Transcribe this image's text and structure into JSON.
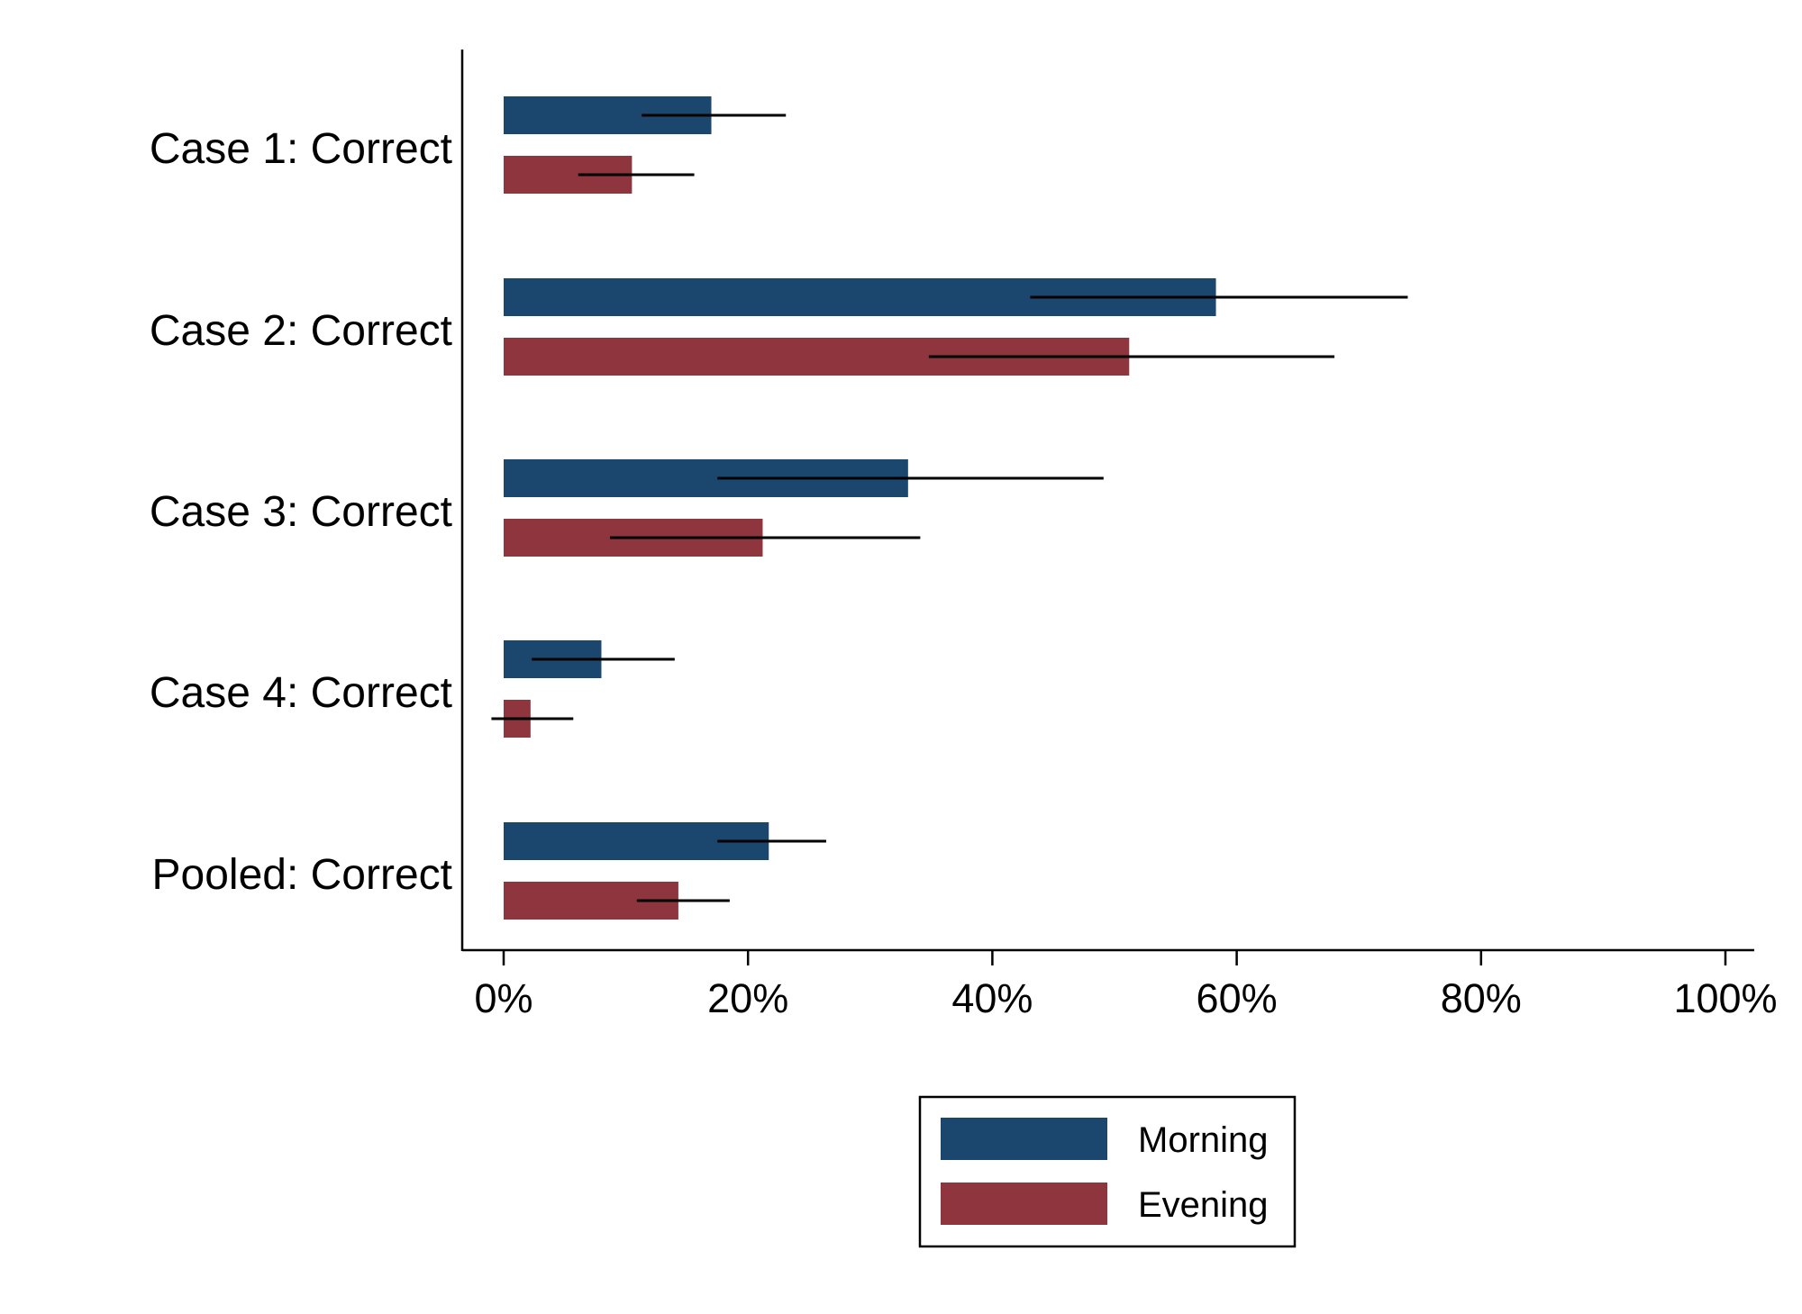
{
  "chart_data": {
    "type": "bar",
    "orientation": "horizontal",
    "title": "",
    "xlabel": "",
    "ylabel": "",
    "categories": [
      "Case 1: Correct",
      "Case 2: Correct",
      "Case 3: Correct",
      "Case 4: Correct",
      "Pooled: Correct"
    ],
    "series": [
      {
        "name": "Morning",
        "color": "#1b476f",
        "values": [
          17.0,
          58.3,
          33.1,
          8.0,
          21.7
        ],
        "ci_low": [
          11.3,
          43.1,
          17.5,
          2.3,
          17.5
        ],
        "ci_high": [
          23.1,
          74.0,
          49.1,
          14.0,
          26.4
        ]
      },
      {
        "name": "Evening",
        "color": "#8e353d",
        "values": [
          10.5,
          51.2,
          21.2,
          2.2,
          14.3
        ],
        "ci_low": [
          6.1,
          34.8,
          8.7,
          -1.0,
          10.9
        ],
        "ci_high": [
          15.6,
          68.0,
          34.1,
          5.7,
          18.5
        ]
      }
    ],
    "xlim": [
      -3.3,
      102
    ],
    "xticks": [
      0,
      20,
      40,
      60,
      80,
      100
    ],
    "tick_suffix": "%",
    "grid": false,
    "legend_position": "bottom-center"
  }
}
